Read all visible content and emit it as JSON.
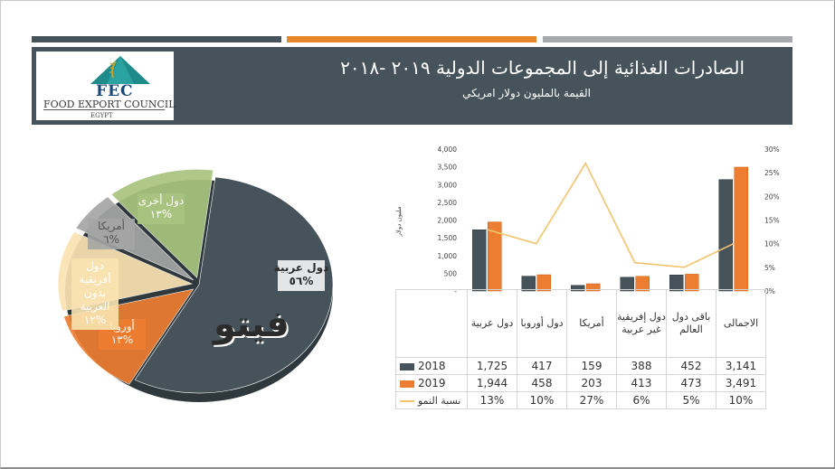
{
  "header": {
    "title": "الصادرات الغذائية إلى المجموعات الدولية ٢٠١٩ -٢٠١٨",
    "subtitle": "القيمة بالمليون دولار امريكي"
  },
  "logo": {
    "abbr": "FEC",
    "name": "FOOD EXPORT COUNCIL",
    "country": "EGYPT"
  },
  "strips": {
    "colors": [
      "#46535a",
      "#e8862a",
      "#a7a9ac"
    ]
  },
  "watermark": {
    "text": "فيتو"
  },
  "colors": {
    "series_2018": "#46535a",
    "series_2019": "#ed7d31",
    "growth_line": "#f2c46d",
    "banner": "#46535a"
  },
  "chart_data": [
    {
      "type": "pie",
      "labels": [
        "دول عربية",
        "أوروبا",
        "دول أفريقية بدون العربية",
        "أمريكا",
        "دول أخرى"
      ],
      "label_values": [
        "%٥٦",
        "%١٣",
        "%١٢",
        "%٦",
        "%١٣"
      ],
      "values": [
        56,
        13,
        12,
        6,
        13
      ],
      "colors": [
        "#46535a",
        "#ed7d31",
        "#f9e3b1",
        "#a5a5a5",
        "#a9c47f"
      ]
    },
    {
      "type": "bar",
      "categories": [
        "دول عربية",
        "دول أوروبا",
        "أمريكا",
        "دول إفريقية غير عربية",
        "باقى دول العالم",
        "الاجمالى"
      ],
      "series": [
        {
          "name": "2018",
          "values": [
            1725,
            417,
            159,
            388,
            452,
            3141
          ],
          "display": [
            "1,725",
            "417",
            "159",
            "388",
            "452",
            "3,141"
          ]
        },
        {
          "name": "2019",
          "values": [
            1944,
            458,
            203,
            413,
            473,
            3491
          ],
          "display": [
            "1,944",
            "458",
            "203",
            "413",
            "473",
            "3,491"
          ]
        }
      ],
      "line_series": {
        "name": "نسبة النمو",
        "values": [
          13,
          10,
          27,
          6,
          5,
          10
        ],
        "display": [
          "13%",
          "10%",
          "27%",
          "6%",
          "5%",
          "10%"
        ]
      },
      "ylabel": "مليون دولار",
      "ylim": [
        0,
        4000
      ],
      "y_ticks": [
        "4,000",
        "3,500",
        "3,000",
        "2,500",
        "2,000",
        "1,500",
        "1,000",
        "500",
        "-"
      ],
      "y2lim": [
        0,
        30
      ],
      "y2_ticks": [
        "30%",
        "25%",
        "20%",
        "15%",
        "10%",
        "5%",
        "0%"
      ],
      "legend": "table"
    }
  ]
}
